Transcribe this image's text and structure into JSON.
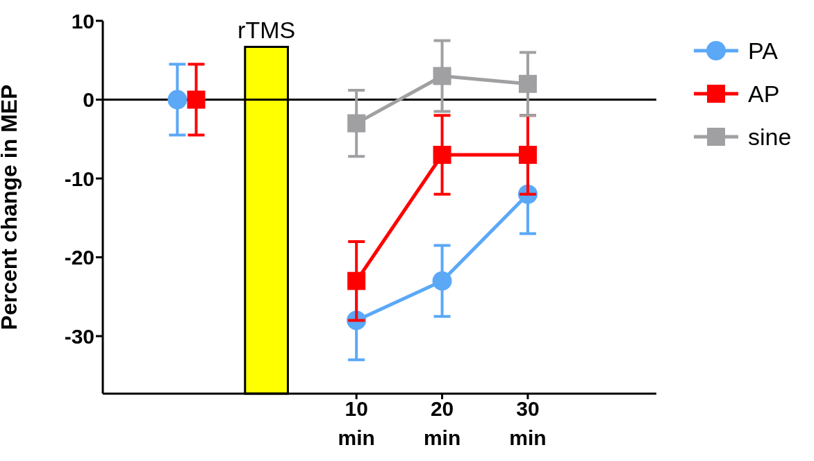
{
  "chart_data": {
    "type": "line",
    "ylabel": "Percent change in MEP",
    "xlim": [
      -19.6,
      45
    ],
    "xticks": [
      {
        "value": 10,
        "label": "10 min"
      },
      {
        "value": 20,
        "label": "20 min"
      },
      {
        "value": 30,
        "label": "30 min"
      }
    ],
    "ylim": [
      -37.3,
      10
    ],
    "yticks": [
      -30,
      -20,
      -10,
      0,
      10
    ],
    "legend": "top right",
    "line_style": "solid",
    "ref_lines": [
      {
        "axis": "y",
        "value": 0,
        "color": "#000000"
      }
    ],
    "series": [
      {
        "name": "rTMS",
        "type": "bar",
        "x": [
          -0.5
        ],
        "base": [
          -37.3
        ],
        "values": [
          44
        ],
        "color": "#ffff00"
      },
      {
        "name": "PA",
        "marker": "circle",
        "color": "#5ba8f7",
        "x": [
          -10.9,
          0,
          10,
          20,
          30
        ],
        "values": [
          0,
          null,
          -28,
          -23,
          -12
        ],
        "errors": [
          4.5,
          null,
          5,
          4.5,
          5
        ]
      },
      {
        "name": "AP",
        "marker": "square",
        "color": "#ff0000",
        "x": [
          -8.7,
          0,
          10,
          20,
          30
        ],
        "values": [
          0,
          null,
          -23,
          -7,
          -7
        ],
        "errors": [
          4.5,
          null,
          5,
          5,
          5
        ]
      },
      {
        "name": "sine",
        "marker": "square",
        "color": "#a0a0a3",
        "x": [
          10,
          20,
          30
        ],
        "values": [
          -3,
          3,
          2
        ],
        "errors": [
          4.2,
          4.5,
          4
        ]
      }
    ]
  }
}
